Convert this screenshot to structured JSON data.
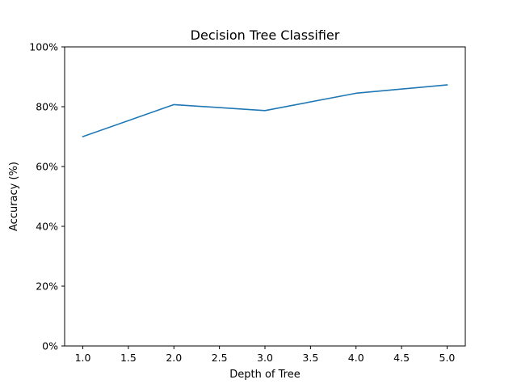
{
  "chart_data": {
    "type": "line",
    "title": "Decision Tree Classifier",
    "xlabel": "Depth of Tree",
    "ylabel": "Accuracy (%)",
    "x": [
      1,
      2,
      3,
      4,
      5
    ],
    "series": [
      {
        "values": [
          0.7,
          0.807,
          0.787,
          0.845,
          0.873
        ],
        "color": "#1f77b4"
      }
    ],
    "xlim": [
      0.8,
      5.2
    ],
    "ylim": [
      0,
      1
    ],
    "xticks": [
      1.0,
      1.5,
      2.0,
      2.5,
      3.0,
      3.5,
      4.0,
      4.5,
      5.0
    ],
    "xtick_labels": [
      "1.0",
      "1.5",
      "2.0",
      "2.5",
      "3.0",
      "3.5",
      "4.0",
      "4.5",
      "5.0"
    ],
    "yticks": [
      0,
      0.2,
      0.4,
      0.6,
      0.8,
      1.0
    ],
    "ytick_labels": [
      "0%",
      "20%",
      "40%",
      "60%",
      "80%",
      "100%"
    ],
    "grid": false,
    "legend": false
  }
}
